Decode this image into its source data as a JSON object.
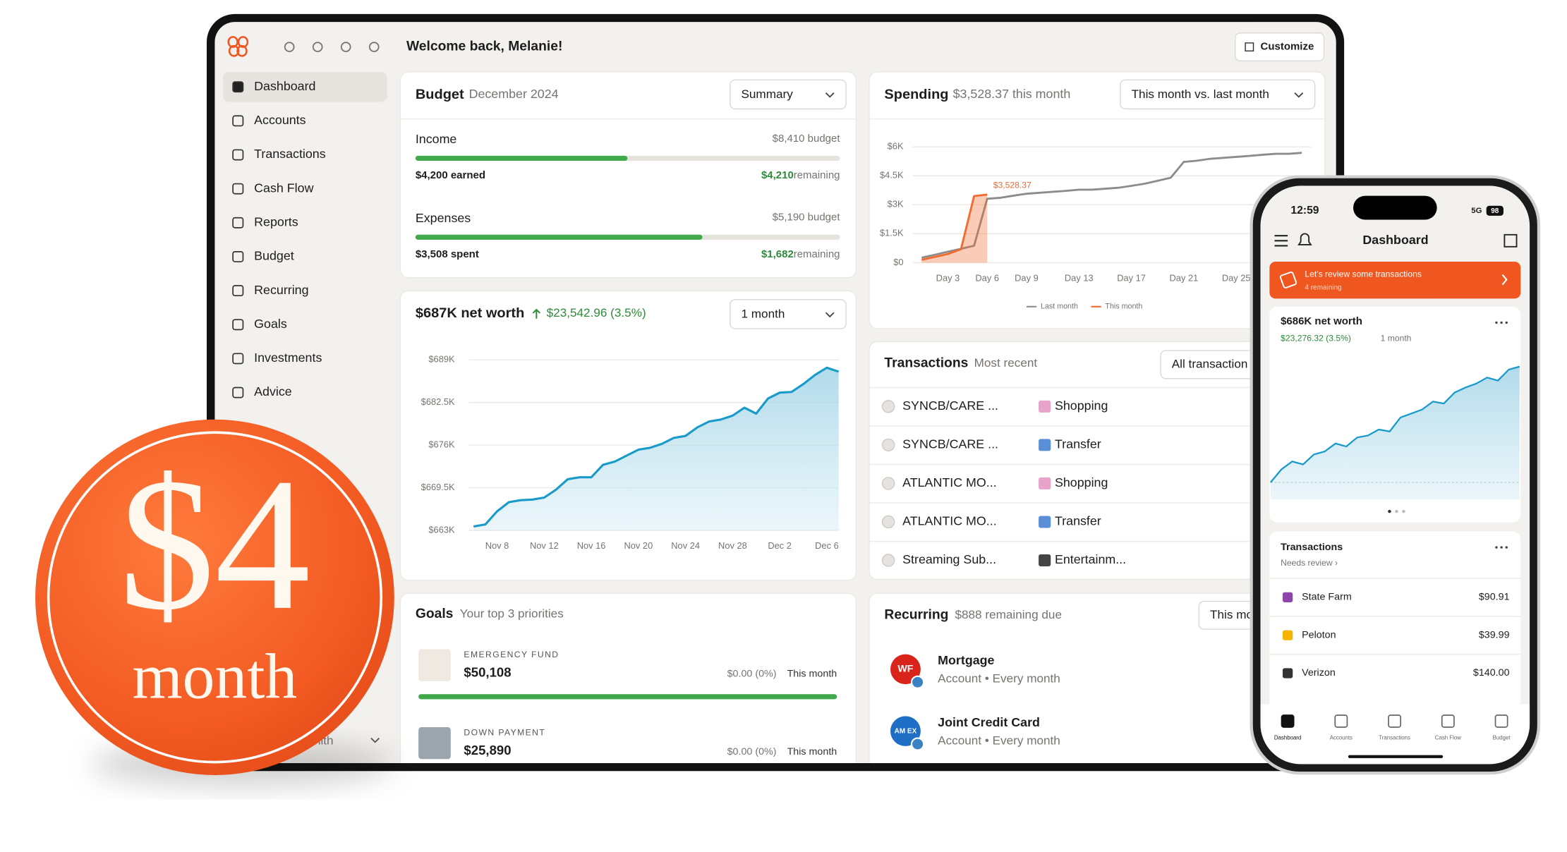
{
  "app": {
    "greeting": "Welcome back, Melanie!",
    "customize": "Customize"
  },
  "sidebar": {
    "items": [
      "Dashboard",
      "Accounts",
      "Transactions",
      "Cash Flow",
      "Reports",
      "Budget",
      "Recurring",
      "Goals",
      "Investments",
      "Advice"
    ],
    "user": "Smith"
  },
  "budget": {
    "title": "Budget",
    "period": "December 2024",
    "view": "Summary",
    "rows": [
      {
        "name": "Income",
        "budget_label": "$8,410 budget",
        "amount_label": "$4,200 earned",
        "remaining_amount": "$4,210",
        "remaining_word": "remaining",
        "budget": 8410,
        "actual": 4200
      },
      {
        "name": "Expenses",
        "budget_label": "$5,190 budget",
        "amount_label": "$3,508 spent",
        "remaining_amount": "$1,682",
        "remaining_word": "remaining",
        "budget": 5190,
        "actual": 3508
      }
    ]
  },
  "chart_data": [
    {
      "type": "area",
      "title": "$687K net worth",
      "subtitle": "$23,542.96 (3.5%)",
      "range_selector": "1 month",
      "color": "#1a9ac9",
      "categories": [
        null,
        null,
        "Nov 8",
        null,
        null,
        null,
        "Nov 12",
        null,
        null,
        null,
        "Nov 16",
        null,
        null,
        null,
        "Nov 20",
        null,
        null,
        null,
        "Nov 24",
        null,
        null,
        null,
        "Nov 28",
        null,
        null,
        null,
        "Dec 2",
        null,
        null,
        null,
        "Dec 6",
        null
      ],
      "values": [
        663600,
        663900,
        665900,
        667300,
        667600,
        667700,
        668000,
        669200,
        670800,
        671100,
        671100,
        673000,
        673500,
        674400,
        675300,
        675600,
        676200,
        677100,
        677400,
        678700,
        679600,
        679900,
        680500,
        681700,
        680800,
        683100,
        684000,
        684100,
        685300,
        686700,
        687800,
        687200
      ],
      "ylim": [
        663000,
        689800
      ],
      "yticks": [
        {
          "value": 663000,
          "label": "$663K"
        },
        {
          "value": 669500,
          "label": "$669.5K"
        },
        {
          "value": 676000,
          "label": "$676K"
        },
        {
          "value": 682500,
          "label": "$682.5K"
        },
        {
          "value": 689000,
          "label": "$689K"
        }
      ],
      "grid": true
    },
    {
      "type": "line",
      "title": "Spending",
      "subtitle": "$3,528.37 this month",
      "range_selector": "This month vs. last month",
      "x": [
        1,
        2,
        3,
        4,
        5,
        6,
        7,
        8,
        9,
        10,
        11,
        12,
        13,
        14,
        15,
        16,
        17,
        18,
        19,
        20,
        21,
        22,
        23,
        24,
        25,
        26,
        27,
        28,
        29,
        30
      ],
      "series": [
        {
          "name": "Last month",
          "color": "#8c8c8c",
          "values": [
            260,
            410,
            570,
            720,
            880,
            3310,
            3360,
            3470,
            3570,
            3620,
            3670,
            3720,
            3780,
            3780,
            3830,
            3880,
            3980,
            4090,
            4240,
            4400,
            5220,
            5280,
            5380,
            5430,
            5480,
            5530,
            5590,
            5640,
            5640,
            5690
          ]
        },
        {
          "name": "This month",
          "color": "#f26a2e",
          "values": [
            150,
            300,
            450,
            700,
            3450,
            3528.37,
            null,
            null,
            null,
            null,
            null,
            null,
            null,
            null,
            null,
            null,
            null,
            null,
            null,
            null,
            null,
            null,
            null,
            null,
            null,
            null,
            null,
            null,
            null,
            null
          ]
        }
      ],
      "annotation": "$3,528.37",
      "xlim": [
        1,
        30
      ],
      "xticks": [
        {
          "value": 3,
          "label": "Day 3"
        },
        {
          "value": 6,
          "label": "Day 6"
        },
        {
          "value": 9,
          "label": "Day 9"
        },
        {
          "value": 13,
          "label": "Day 13"
        },
        {
          "value": 17,
          "label": "Day 17"
        },
        {
          "value": 21,
          "label": "Day 21"
        },
        {
          "value": 25,
          "label": "Day 25"
        }
      ],
      "ylim": [
        0,
        6000
      ],
      "yticks": [
        {
          "value": 0,
          "label": "$0"
        },
        {
          "value": 1500,
          "label": "$1.5K"
        },
        {
          "value": 3000,
          "label": "$3K"
        },
        {
          "value": 4500,
          "label": "$4.5K"
        },
        {
          "value": 6000,
          "label": "$6K"
        }
      ],
      "grid": true
    },
    {
      "type": "area",
      "title": "$686K net worth",
      "subtitle": "$23,276.32 (3.5%)",
      "range_selector": "1 month",
      "color": "#1a9ac9",
      "values": [
        663000,
        665600,
        667200,
        666600,
        668600,
        669200,
        670800,
        670200,
        672000,
        672400,
        673600,
        673200,
        676000,
        676800,
        677600,
        679200,
        678800,
        681000,
        682000,
        682800,
        684000,
        683400,
        685600,
        686200
      ],
      "ylim": [
        659600,
        689600
      ]
    }
  ],
  "transactions": {
    "title": "Transactions",
    "subtitle": "Most recent",
    "filter": "All transaction",
    "rows": [
      {
        "name": "SYNCB/CARE ...",
        "category": "Shopping"
      },
      {
        "name": "SYNCB/CARE ...",
        "category": "Transfer"
      },
      {
        "name": "ATLANTIC MO...",
        "category": "Shopping"
      },
      {
        "name": "ATLANTIC MO...",
        "category": "Transfer"
      },
      {
        "name": "Streaming Sub...",
        "category": "Entertainm..."
      }
    ]
  },
  "recurring": {
    "title": "Recurring",
    "subtitle": "$888 remaining due",
    "filter": "This mo",
    "items": [
      {
        "logo": "WF",
        "name": "Mortgage",
        "detail": "Account • Every month"
      },
      {
        "logo": "AM EX",
        "name": "Joint Credit Card",
        "detail": "Account • Every month"
      }
    ]
  },
  "goals": {
    "title": "Goals",
    "subtitle": "Your top 3 priorities",
    "items": [
      {
        "label": "EMERGENCY FUND",
        "amount": "$50,108",
        "change": "$0.00 (0%)",
        "period": "This month",
        "progress": 100
      },
      {
        "label": "DOWN PAYMENT",
        "amount": "$25,890",
        "change": "$0.00 (0%)",
        "period": "This month"
      }
    ]
  },
  "promo": {
    "price": "$4",
    "unit": "month"
  },
  "phone": {
    "time": "12:59",
    "network": "5G",
    "battery": "98",
    "title": "Dashboard",
    "banner": {
      "title": "Let's review some transactions",
      "subtitle": "4 remaining"
    },
    "transactions": {
      "title": "Transactions",
      "subtitle": "Needs review ›",
      "rows": [
        {
          "name": "State Farm",
          "amount": "$90.91"
        },
        {
          "name": "Peloton",
          "amount": "$39.99"
        },
        {
          "name": "Verizon",
          "amount": "$140.00"
        }
      ]
    },
    "tabs": [
      "Dashboard",
      "Accounts",
      "Transactions",
      "Cash Flow",
      "Budget"
    ]
  }
}
